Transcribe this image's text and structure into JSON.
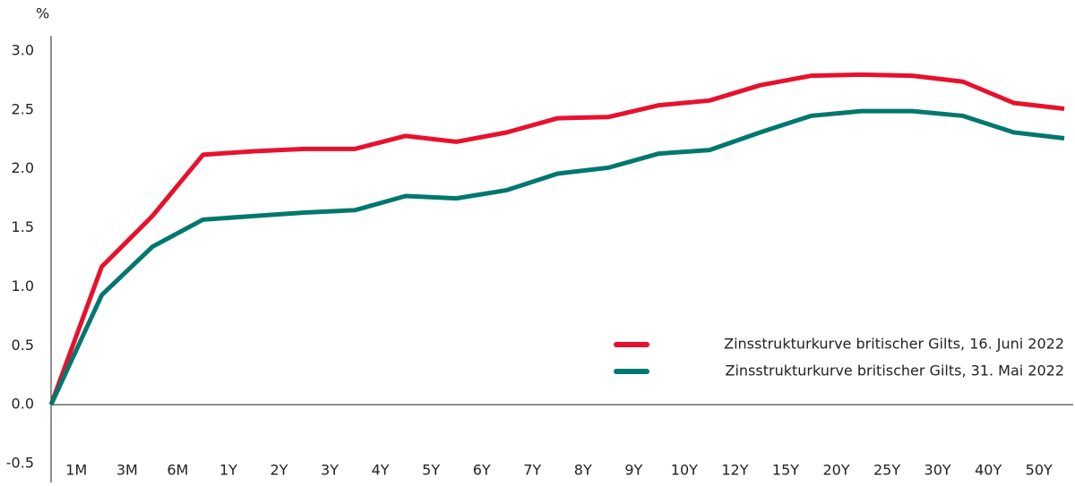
{
  "chart_data": {
    "type": "line",
    "y_unit": "%",
    "categories": [
      null,
      "1M",
      "3M",
      "6M",
      "1Y",
      "2Y",
      "3Y",
      "4Y",
      "5Y",
      "6Y",
      "7Y",
      "8Y",
      "9Y",
      "10Y",
      "12Y",
      "15Y",
      "20Y",
      "25Y",
      "30Y",
      "40Y",
      "50Y"
    ],
    "series": [
      {
        "name": "Zinsstrukturkurve britischer Gilts, 16. Juni 2022",
        "color": "#e8112d",
        "values": [
          0,
          1.17,
          1.6,
          2.12,
          2.15,
          2.17,
          2.17,
          2.28,
          2.23,
          2.31,
          2.43,
          2.44,
          2.54,
          2.58,
          2.71,
          2.79,
          2.8,
          2.79,
          2.74,
          2.56,
          2.51
        ]
      },
      {
        "name": "Zinsstrukturkurve britischer Gilts, 31. Mai 2022",
        "color": "#00786e",
        "values": [
          0,
          0.93,
          1.34,
          1.57,
          1.6,
          1.63,
          1.65,
          1.77,
          1.75,
          1.82,
          1.96,
          2.01,
          2.13,
          2.16,
          2.31,
          2.45,
          2.49,
          2.49,
          2.45,
          2.31,
          2.26
        ]
      }
    ],
    "ylim": [
      -0.5,
      3.0
    ],
    "yticks": [
      {
        "value": -0.5,
        "label": "-0.5"
      },
      {
        "value": 0,
        "label": "0.0"
      },
      {
        "value": 0.5,
        "label": "0.5"
      },
      {
        "value": 1,
        "label": "1.0"
      },
      {
        "value": 1.5,
        "label": "1.5"
      },
      {
        "value": 2,
        "label": "2.0"
      },
      {
        "value": 2.5,
        "label": "2.5"
      },
      {
        "value": 3,
        "label": "3.0"
      }
    ],
    "legend": "lower right",
    "grid": false
  }
}
